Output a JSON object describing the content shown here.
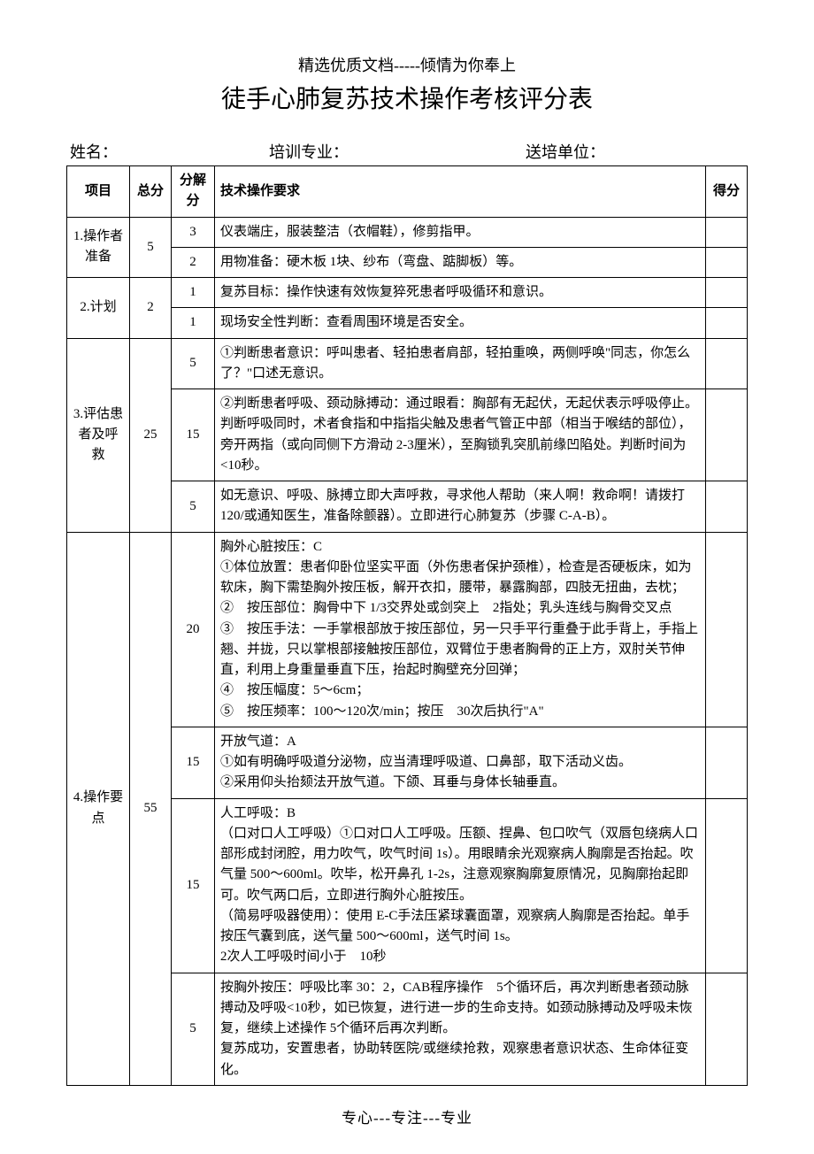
{
  "header_note": "精选优质文档-----倾情为你奉上",
  "main_title": "徒手心肺复苏技术操作考核评分表",
  "info": {
    "name_label": "姓名：",
    "major_label": "培训专业：",
    "unit_label": "送培单位："
  },
  "table_headers": {
    "item": "项目",
    "total": "总分",
    "sub": "分解分",
    "req": "技术操作要求",
    "score": "得分"
  },
  "rows": {
    "r1": {
      "item": "1.操作者准备",
      "total": "5",
      "sub1": "3",
      "req1": "仪表端庄，服装整洁（衣帽鞋），修剪指甲。",
      "sub2": "2",
      "req2": "用物准备：硬木板 1块、纱布（弯盘、踮脚板）等。"
    },
    "r2": {
      "item": "2.计划",
      "total": "2",
      "sub1": "1",
      "req1": "复苏目标：操作快速有效恢复猝死患者呼吸循环和意识。",
      "sub2": "1",
      "req2": "现场安全性判断：查看周围环境是否安全。"
    },
    "r3": {
      "item": "3.评估患者及呼救",
      "total": "25",
      "sub1": "5",
      "req1": "①判断患者意识：呼叫患者、轻拍患者肩部，轻拍重唤，两侧呼唤\"同志，你怎么了？\"口述无意识。",
      "sub2": "15",
      "req2": "②判断患者呼吸、颈动脉搏动：通过眼看：胸部有无起伏，无起伏表示呼吸停止。判断呼吸同时，术者食指和中指指尖触及患者气管正中部（相当于喉结的部位），旁开两指（或向同侧下方滑动 2-3厘米），至胸锁乳突肌前缘凹陷处。判断时间为<10秒。",
      "sub3": "5",
      "req3": "如无意识、呼吸、脉搏立即大声呼救，寻求他人帮助（来人啊！救命啊！请拨打 120/或通知医生，准备除颤器）。立即进行心肺复苏（步骤 C-A-B）。"
    },
    "r4": {
      "item": "4.操作要点",
      "total": "55",
      "sub1": "20",
      "req1_title": "胸外心脏按压：C",
      "req1_l1": "①体位放置：患者仰卧位坚实平面（外伤患者保护颈椎），检查是否硬板床，如为软床，胸下需垫胸外按压板，解开衣扣，腰带，暴露胸部，四肢无扭曲，去枕；",
      "req1_l2": "②　按压部位：胸骨中下 1/3交界处或剑突上　2指处；乳头连线与胸骨交叉点",
      "req1_l3": "③　按压手法：一手掌根部放于按压部位，另一只手平行重叠于此手背上，手指上翘、并拢，只以掌根部接触按压部位，双臂位于患者胸骨的正上方，双肘关节伸直，利用上身重量垂直下压，抬起时胸壁充分回弹；",
      "req1_l4": "④　按压幅度：5～6cm；",
      "req1_l5": "⑤　按压频率：100～120次/min；按压　30次后执行\"A\"",
      "sub2": "15",
      "req2_title": "开放气道：A",
      "req2_l1": "①如有明确呼吸道分泌物，应当清理呼吸道、口鼻部，取下活动义齿。",
      "req2_l2": "②采用仰头抬颏法开放气道。下颌、耳垂与身体长轴垂直。",
      "sub3": "15",
      "req3_title": "人工呼吸：B",
      "req3_l1": "（口对口人工呼吸）①口对口人工呼吸。压额、捏鼻、包口吹气（双唇包绕病人口部形成封闭腔，用力吹气，吹气时间 1s）。用眼睛余光观察病人胸廓是否抬起。吹气量 500～600ml。吹毕，松开鼻孔 1-2s，注意观察胸廓复原情况，见胸廓抬起即可。吹气两口后，立即进行胸外心脏按压。",
      "req3_l2": "（简易呼吸器使用）：使用 E-C手法压紧球囊面罩，观察病人胸廓是否抬起。单手按压气囊到底，送气量 500～600ml，送气时间 1s。",
      "req3_l3": "2次人工呼吸时间小于　10秒",
      "sub4": "5",
      "req4_l1": "按胸外按压：呼吸比率 30：2，CAB程序操作　5个循环后，再次判断患者颈动脉搏动及呼吸<10秒，如已恢复，进行进一步的生命支持。如颈动脉搏动及呼吸未恢复，继续上述操作 5个循环后再次判断。",
      "req4_l2": "复苏成功，安置患者，协助转医院/或继续抢救，观察患者意识状态、生命体征变化。"
    }
  },
  "footer_note": "专心---专注---专业"
}
